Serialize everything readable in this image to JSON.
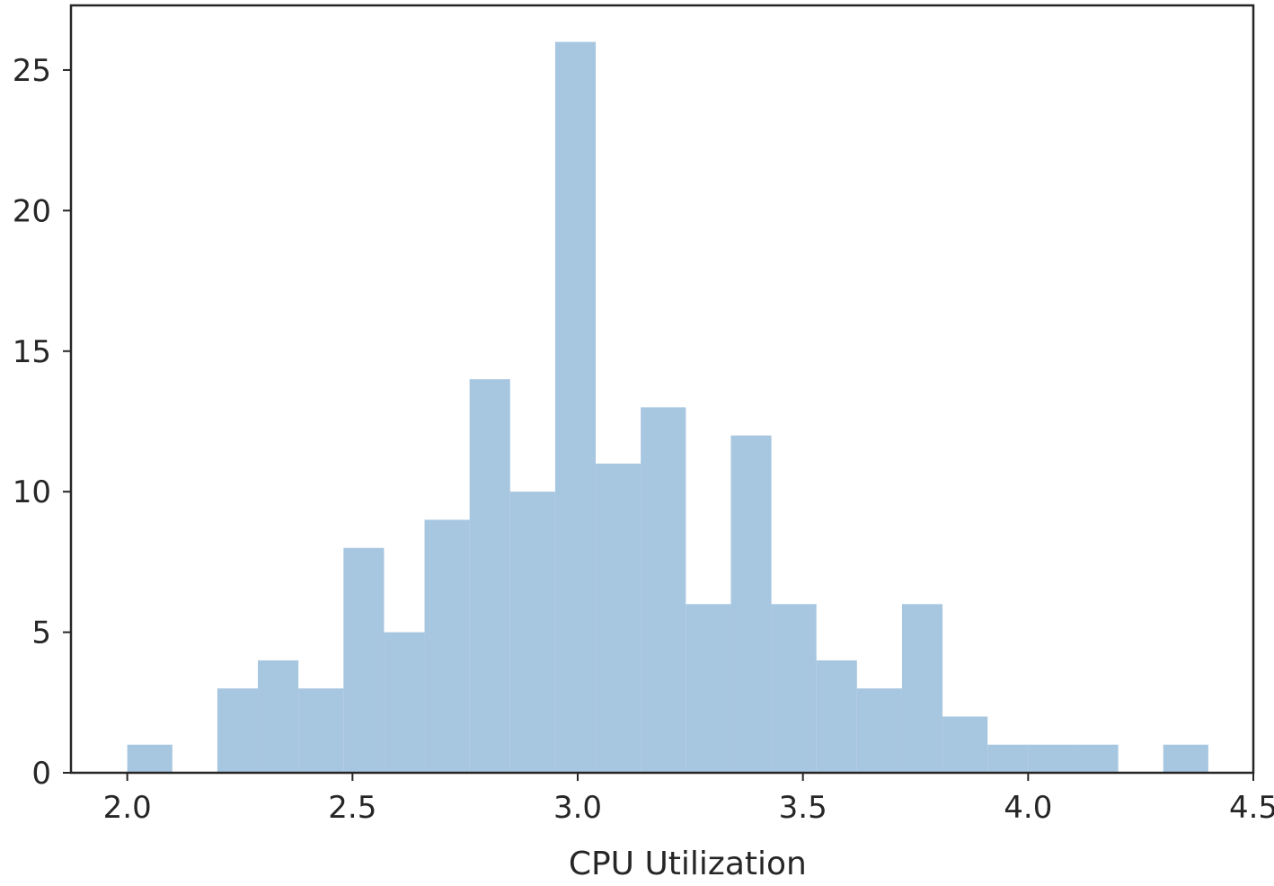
{
  "chart_data": {
    "type": "bar",
    "subtype": "histogram",
    "title": "",
    "xlabel": "CPU Utilization",
    "ylabel": "",
    "bar_color": "#a7c6e0",
    "axis_color": "#262626",
    "xlim": [
      1.875,
      4.5
    ],
    "ylim": [
      0,
      27.3
    ],
    "x_ticks": [
      2.0,
      2.5,
      3.0,
      3.5,
      4.0,
      4.5
    ],
    "x_tick_labels": [
      "2.0",
      "2.5",
      "3.0",
      "3.5",
      "4.0",
      "4.5"
    ],
    "y_ticks": [
      0,
      5,
      10,
      15,
      20,
      25
    ],
    "y_tick_labels": [
      "0",
      "5",
      "10",
      "15",
      "20",
      "25"
    ],
    "grid": false,
    "legend": "none",
    "bins": [
      {
        "x0": 2.0,
        "x1": 2.1,
        "count": 1
      },
      {
        "x0": 2.1,
        "x1": 2.2,
        "count": 0
      },
      {
        "x0": 2.2,
        "x1": 2.29,
        "count": 3
      },
      {
        "x0": 2.29,
        "x1": 2.38,
        "count": 4
      },
      {
        "x0": 2.38,
        "x1": 2.48,
        "count": 3
      },
      {
        "x0": 2.48,
        "x1": 2.57,
        "count": 8
      },
      {
        "x0": 2.57,
        "x1": 2.66,
        "count": 5
      },
      {
        "x0": 2.66,
        "x1": 2.76,
        "count": 9
      },
      {
        "x0": 2.76,
        "x1": 2.85,
        "count": 14
      },
      {
        "x0": 2.85,
        "x1": 2.95,
        "count": 10
      },
      {
        "x0": 2.95,
        "x1": 3.04,
        "count": 26
      },
      {
        "x0": 3.04,
        "x1": 3.14,
        "count": 11
      },
      {
        "x0": 3.14,
        "x1": 3.24,
        "count": 13
      },
      {
        "x0": 3.24,
        "x1": 3.34,
        "count": 6
      },
      {
        "x0": 3.34,
        "x1": 3.43,
        "count": 12
      },
      {
        "x0": 3.43,
        "x1": 3.53,
        "count": 6
      },
      {
        "x0": 3.53,
        "x1": 3.62,
        "count": 4
      },
      {
        "x0": 3.62,
        "x1": 3.72,
        "count": 3
      },
      {
        "x0": 3.72,
        "x1": 3.81,
        "count": 6
      },
      {
        "x0": 3.81,
        "x1": 3.91,
        "count": 2
      },
      {
        "x0": 3.91,
        "x1": 4.0,
        "count": 1
      },
      {
        "x0": 4.0,
        "x1": 4.1,
        "count": 1
      },
      {
        "x0": 4.1,
        "x1": 4.2,
        "count": 1
      },
      {
        "x0": 4.2,
        "x1": 4.3,
        "count": 0
      },
      {
        "x0": 4.3,
        "x1": 4.4,
        "count": 1
      }
    ]
  }
}
